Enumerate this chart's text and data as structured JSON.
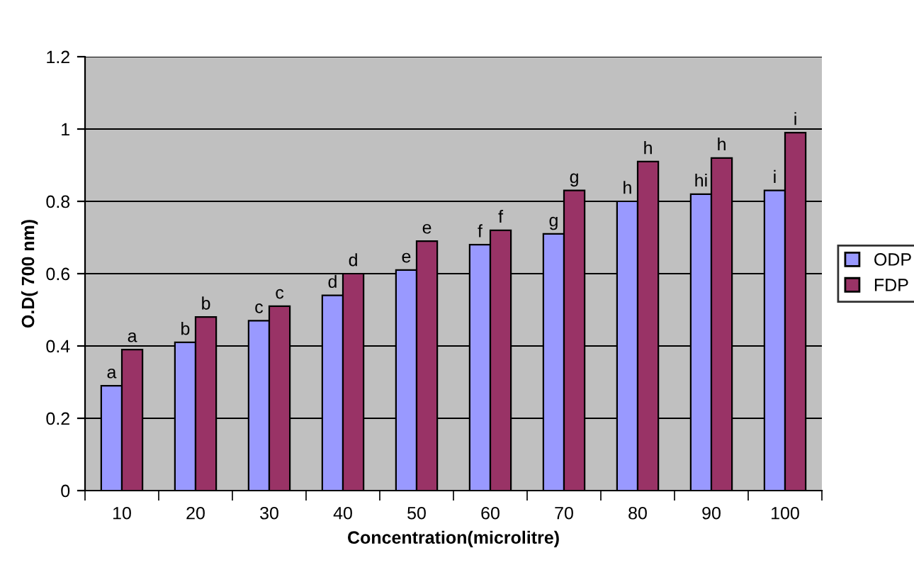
{
  "chart_data": {
    "type": "bar",
    "xlabel": "Concentration(microlitre)",
    "ylabel": "O.D( 700 nm)",
    "categories": [
      "10",
      "20",
      "30",
      "40",
      "50",
      "60",
      "70",
      "80",
      "90",
      "100"
    ],
    "series": [
      {
        "name": "ODP",
        "color": "#9999ff",
        "values": [
          0.29,
          0.41,
          0.47,
          0.54,
          0.61,
          0.68,
          0.71,
          0.8,
          0.82,
          0.83
        ],
        "value_labels": [
          "a",
          "b",
          "c",
          "d",
          "e",
          "f",
          "g",
          "h",
          "hi",
          "i"
        ]
      },
      {
        "name": "FDP",
        "color": "#993366",
        "values": [
          0.39,
          0.48,
          0.51,
          0.6,
          0.69,
          0.72,
          0.83,
          0.91,
          0.92,
          0.99
        ],
        "value_labels": [
          "a",
          "b",
          "c",
          "d",
          "e",
          "f",
          "g",
          "h",
          "h",
          "i"
        ]
      }
    ],
    "ylim": [
      0,
      1.2
    ],
    "yticks": [
      0,
      0.2,
      0.4,
      0.6,
      0.8,
      1,
      1.2
    ],
    "grid": "y",
    "legend": "right"
  }
}
